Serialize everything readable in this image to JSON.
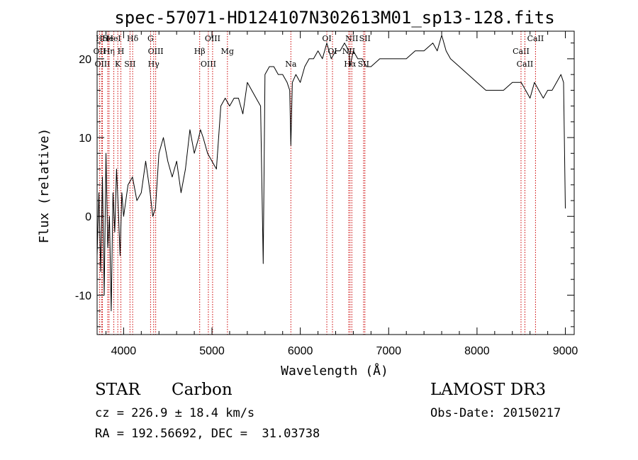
{
  "chart_data": {
    "type": "line",
    "title": "spec-57071-HD124107N302613M01_sp13-128.fits",
    "xlabel": "Wavelength (Å)",
    "ylabel": "Flux (relative)",
    "xlim": [
      3700,
      9100
    ],
    "ylim": [
      -15,
      23.5
    ],
    "x_ticks": [
      4000,
      5000,
      6000,
      7000,
      8000,
      9000
    ],
    "y_ticks": [
      -10,
      0,
      10,
      20
    ],
    "grid": false,
    "series": [
      {
        "name": "flux",
        "x": [
          3700,
          3720,
          3740,
          3760,
          3780,
          3800,
          3820,
          3840,
          3860,
          3880,
          3900,
          3920,
          3940,
          3960,
          3980,
          4000,
          4050,
          4100,
          4150,
          4200,
          4250,
          4300,
          4330,
          4360,
          4400,
          4450,
          4500,
          4550,
          4600,
          4650,
          4700,
          4750,
          4800,
          4850,
          4870,
          4900,
          4950,
          5000,
          5050,
          5100,
          5150,
          5200,
          5250,
          5300,
          5350,
          5400,
          5450,
          5500,
          5550,
          5580,
          5600,
          5650,
          5700,
          5750,
          5800,
          5850,
          5880,
          5893,
          5910,
          5950,
          6000,
          6050,
          6100,
          6150,
          6200,
          6250,
          6300,
          6350,
          6400,
          6450,
          6500,
          6550,
          6563,
          6600,
          6650,
          6700,
          6750,
          6800,
          6900,
          7000,
          7100,
          7200,
          7300,
          7400,
          7500,
          7550,
          7600,
          7650,
          7700,
          7800,
          7900,
          8000,
          8100,
          8200,
          8300,
          8400,
          8500,
          8550,
          8600,
          8650,
          8700,
          8750,
          8800,
          8850,
          8900,
          8950,
          8980,
          9000
        ],
        "y": [
          -5,
          3,
          -7,
          5,
          -10,
          8,
          -4,
          0,
          -12,
          3,
          -2,
          6,
          1,
          -5,
          3,
          0,
          4,
          5,
          2,
          3,
          7,
          3,
          0,
          1,
          8,
          10,
          7,
          5,
          7,
          3,
          6,
          11,
          8,
          10,
          11,
          10,
          8,
          7,
          6,
          14,
          15,
          14,
          15,
          15,
          13,
          17,
          16,
          15,
          14,
          -6,
          18,
          19,
          19,
          18,
          18,
          17,
          16,
          9,
          17,
          18,
          17,
          19,
          20,
          20,
          21,
          20,
          22,
          20,
          21,
          21,
          22,
          21,
          19,
          21,
          20,
          20,
          19,
          19,
          20,
          20,
          20,
          20,
          21,
          21,
          22,
          21,
          23,
          21,
          20,
          19,
          18,
          17,
          16,
          16,
          16,
          17,
          17,
          16,
          15,
          17,
          16,
          15,
          16,
          16,
          17,
          18,
          17,
          1
        ]
      }
    ],
    "line_markers": [
      {
        "label": "Hδ",
        "x": 3750
      },
      {
        "label": "OII",
        "x": 3727
      },
      {
        "label": "OIII",
        "x": 3760
      },
      {
        "label": "He",
        "x": 3820
      },
      {
        "label": "Hη",
        "x": 3835
      },
      {
        "label": "K",
        "x": 3934
      },
      {
        "label": "HeI",
        "x": 3889
      },
      {
        "label": "H",
        "x": 3969
      },
      {
        "label": "SII",
        "x": 4072
      },
      {
        "label": "Hδ",
        "x": 4102
      },
      {
        "label": "OIII",
        "x": 4363
      },
      {
        "label": "Hγ",
        "x": 4340
      },
      {
        "label": "G",
        "x": 4305
      },
      {
        "label": "Hβ",
        "x": 4861
      },
      {
        "label": "OIII",
        "x": 4959
      },
      {
        "label": "OIII",
        "x": 5007
      },
      {
        "label": "Mg",
        "x": 5175
      },
      {
        "label": "Na",
        "x": 5893
      },
      {
        "label": "OI",
        "x": 6300
      },
      {
        "label": "OI",
        "x": 6364
      },
      {
        "label": "Hα",
        "x": 6563
      },
      {
        "label": "NII",
        "x": 6583
      },
      {
        "label": "NII",
        "x": 6548
      },
      {
        "label": "SII",
        "x": 6716
      },
      {
        "label": "SII",
        "x": 6731
      },
      {
        "label": "CaII",
        "x": 8498
      },
      {
        "label": "CaII",
        "x": 8542
      },
      {
        "label": "CaII",
        "x": 8662
      }
    ]
  },
  "info": {
    "object_class": "STAR",
    "subclass": "Carbon",
    "survey": "LAMOST DR3",
    "redshift": "cz = 226.9 ± 18.4 km/s",
    "obs_date": "Obs-Date: 20150217",
    "coords": "RA = 192.56692, DEC =  31.03738"
  },
  "colors": {
    "spectrum": "#000000",
    "marker_line": "#cc0000",
    "axis": "#000000",
    "background": "#ffffff"
  }
}
